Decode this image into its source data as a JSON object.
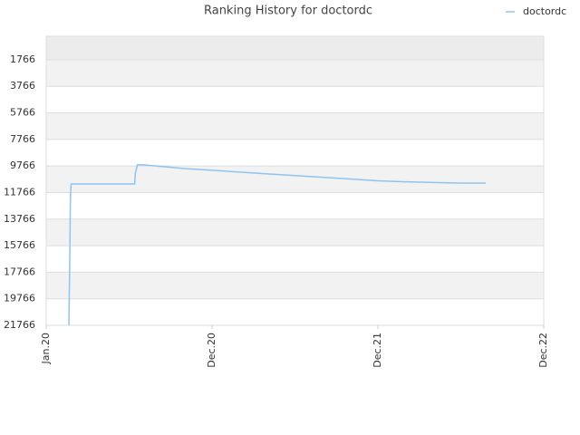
{
  "chart_data": {
    "type": "line",
    "title": "Ranking History for doctordc",
    "x": [
      1.64,
      1.7,
      1.75,
      1.8,
      6.4,
      6.45,
      6.6,
      7.0,
      8.5,
      10,
      12,
      14,
      16,
      18,
      20,
      22,
      24,
      26,
      28,
      30,
      31.8
    ],
    "series": [
      {
        "name": "doctordc",
        "color": "#90c3f0",
        "values": [
          21766,
          17056,
          12278,
          11118,
          11118,
          10300,
          9684,
          9684,
          9820,
          9960,
          10090,
          10230,
          10360,
          10490,
          10620,
          10750,
          10880,
          10960,
          11010,
          11050,
          11050
        ]
      }
    ],
    "xlim": [
      0,
      36
    ],
    "xticks": [
      {
        "value": 0,
        "label": "Jan.20"
      },
      {
        "value": 12,
        "label": "Dec.20"
      },
      {
        "value": 24,
        "label": "Dec.21"
      },
      {
        "value": 36,
        "label": "Dec.22"
      }
    ],
    "ylim": [
      21766,
      0
    ],
    "yticks": [
      1766,
      3766,
      5766,
      7766,
      9766,
      11766,
      13766,
      15766,
      17766,
      19766,
      21766
    ],
    "grid": true,
    "legend": "top-right"
  }
}
